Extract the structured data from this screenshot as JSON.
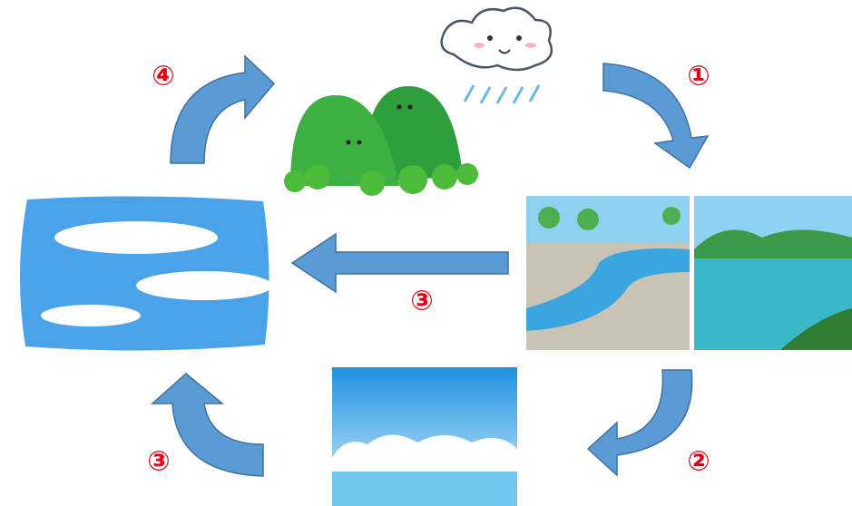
{
  "labels": [
    "①",
    "②",
    "③",
    "③",
    "④"
  ]
}
